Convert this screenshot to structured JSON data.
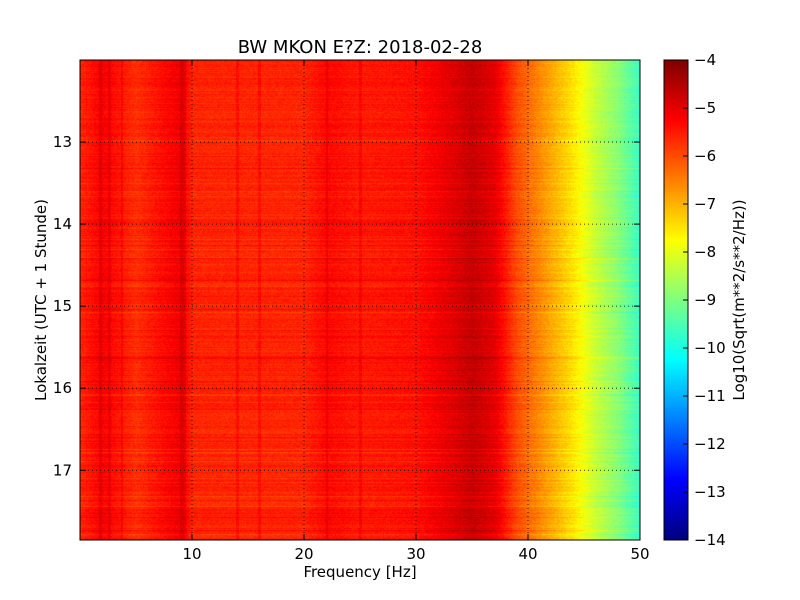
{
  "chart_data": {
    "type": "heatmap",
    "title": "BW MKON E?Z: 2018-02-28",
    "xlabel": "Frequency [Hz]",
    "ylabel": "Lokalzeit (UTC + 1 Stunde)",
    "xlim": [
      0,
      50
    ],
    "ylim_hours": [
      12.0,
      17.85
    ],
    "y_inverted": true,
    "x_ticks": [
      10,
      20,
      30,
      40,
      50
    ],
    "y_ticks": [
      13,
      14,
      15,
      16,
      17
    ],
    "grid": true,
    "grid_style": "dotted",
    "colormap": "jet",
    "colorbar": {
      "label": "Log10(Sqrt(m**2/s**2/Hz))",
      "range": [
        -14,
        -4
      ],
      "ticks": [
        -4,
        -5,
        -6,
        -7,
        -8,
        -9,
        -10,
        -11,
        -12,
        -13,
        -14
      ]
    },
    "spectral_profile": {
      "frequency_hz": [
        0,
        2,
        5,
        9,
        10,
        15,
        20,
        22,
        25,
        30,
        33,
        35,
        37,
        38,
        39,
        40,
        41,
        42,
        43,
        44,
        45,
        46,
        47,
        48,
        49,
        50
      ],
      "log10_amplitude": [
        -5.6,
        -5.2,
        -5.7,
        -5.1,
        -5.6,
        -5.6,
        -5.6,
        -5.3,
        -5.5,
        -5.4,
        -5.0,
        -4.7,
        -5.0,
        -5.5,
        -6.0,
        -6.3,
        -6.6,
        -6.9,
        -7.2,
        -7.5,
        -7.9,
        -8.3,
        -8.6,
        -8.9,
        -9.3,
        -9.7
      ]
    },
    "vertical_lines_hz": [
      1.8,
      2.6,
      3.7,
      9.0,
      9.3,
      14.0,
      16.0,
      22.0,
      25.0
    ]
  }
}
